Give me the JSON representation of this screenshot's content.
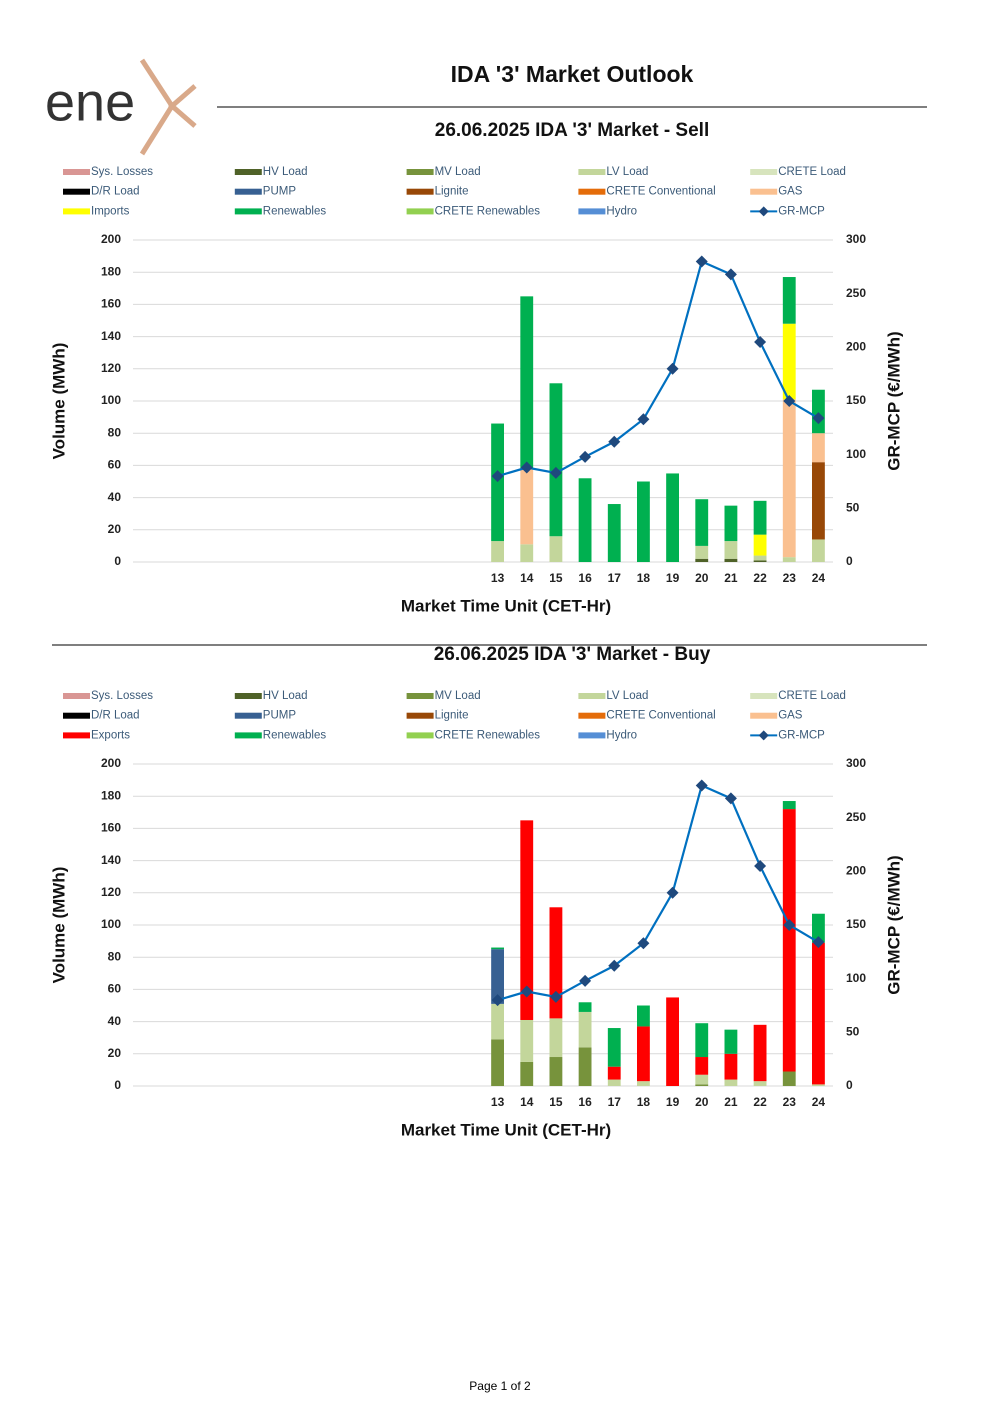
{
  "logo": "ene",
  "title": "IDA '3' Market Outlook",
  "footer": "Page 1 of 2",
  "chart_data": [
    {
      "type": "stacked-bar-line",
      "title": "26.06.2025  IDA '3' Market - Sell",
      "x_label": "Market Time Unit (CET-Hr)",
      "y_label": "Volume (MWh)",
      "y2_label": "GR-MCP (€/MWh)",
      "categories": [
        null,
        null,
        null,
        null,
        null,
        null,
        null,
        null,
        null,
        null,
        null,
        null,
        "13",
        "14",
        "15",
        "16",
        "17",
        "18",
        "19",
        "20",
        "21",
        "22",
        "23",
        "24"
      ],
      "ylim": [
        0,
        200
      ],
      "yticks": [
        0,
        20,
        40,
        60,
        80,
        100,
        120,
        140,
        160,
        180,
        200
      ],
      "y2lim": [
        0,
        300
      ],
      "y2ticks": [
        0,
        50,
        100,
        150,
        200,
        250,
        300
      ],
      "grid": true,
      "series": [
        {
          "name": "Sys. Losses",
          "color": "#d99694",
          "values": [
            null,
            null,
            null,
            null,
            null,
            null,
            null,
            null,
            null,
            null,
            null,
            null,
            null,
            null,
            null,
            null,
            null,
            null,
            null,
            null,
            null,
            null,
            null,
            null
          ]
        },
        {
          "name": "HV Load",
          "color": "#4f6228",
          "values": [
            null,
            null,
            null,
            null,
            null,
            null,
            null,
            null,
            null,
            null,
            null,
            null,
            null,
            null,
            null,
            null,
            null,
            null,
            null,
            2,
            2,
            1,
            null,
            null
          ]
        },
        {
          "name": "MV Load",
          "color": "#77933c",
          "values": [
            null,
            null,
            null,
            null,
            null,
            null,
            null,
            null,
            null,
            null,
            null,
            null,
            null,
            null,
            null,
            null,
            null,
            null,
            null,
            null,
            null,
            null,
            null,
            null
          ]
        },
        {
          "name": "LV Load",
          "color": "#c3d69b",
          "values": [
            null,
            null,
            null,
            null,
            null,
            null,
            null,
            null,
            null,
            null,
            null,
            null,
            13,
            11,
            16,
            null,
            null,
            null,
            null,
            8,
            11,
            3,
            3,
            14
          ]
        },
        {
          "name": "CRETE Load",
          "color": "#d7e4bd",
          "values": [
            null,
            null,
            null,
            null,
            null,
            null,
            null,
            null,
            null,
            null,
            null,
            null,
            null,
            null,
            null,
            null,
            null,
            null,
            null,
            null,
            null,
            null,
            null,
            null
          ]
        },
        {
          "name": "D/R Load",
          "color": "#000000",
          "values": [
            null,
            null,
            null,
            null,
            null,
            null,
            null,
            null,
            null,
            null,
            null,
            null,
            null,
            null,
            null,
            null,
            null,
            null,
            null,
            null,
            null,
            null,
            null,
            null
          ]
        },
        {
          "name": "PUMP",
          "color": "#376092",
          "values": [
            null,
            null,
            null,
            null,
            null,
            null,
            null,
            null,
            null,
            null,
            null,
            null,
            null,
            null,
            null,
            null,
            null,
            null,
            null,
            null,
            null,
            null,
            null,
            null
          ]
        },
        {
          "name": "Lignite",
          "color": "#984807",
          "values": [
            null,
            null,
            null,
            null,
            null,
            null,
            null,
            null,
            null,
            null,
            null,
            null,
            null,
            null,
            null,
            null,
            null,
            null,
            null,
            null,
            null,
            null,
            null,
            48
          ]
        },
        {
          "name": "CRETE Conventional",
          "color": "#e46c0a",
          "values": [
            null,
            null,
            null,
            null,
            null,
            null,
            null,
            null,
            null,
            null,
            null,
            null,
            null,
            null,
            null,
            null,
            null,
            null,
            null,
            null,
            null,
            null,
            null,
            null
          ]
        },
        {
          "name": "GAS",
          "color": "#fac090",
          "values": [
            null,
            null,
            null,
            null,
            null,
            null,
            null,
            null,
            null,
            null,
            null,
            null,
            null,
            47,
            null,
            null,
            null,
            null,
            null,
            null,
            null,
            null,
            98,
            18
          ]
        },
        {
          "name": "Imports",
          "color": "#ffff00",
          "values": [
            null,
            null,
            null,
            null,
            null,
            null,
            null,
            null,
            null,
            null,
            null,
            null,
            null,
            null,
            null,
            null,
            null,
            null,
            null,
            null,
            null,
            13,
            47,
            null
          ]
        },
        {
          "name": "Renewables",
          "color": "#00b050",
          "values": [
            null,
            null,
            null,
            null,
            null,
            null,
            null,
            null,
            null,
            null,
            null,
            null,
            73,
            107,
            95,
            52,
            36,
            50,
            55,
            29,
            22,
            21,
            29,
            27
          ]
        },
        {
          "name": "CRETE Renewables",
          "color": "#92d050",
          "values": [
            null,
            null,
            null,
            null,
            null,
            null,
            null,
            null,
            null,
            null,
            null,
            null,
            null,
            null,
            null,
            null,
            null,
            null,
            null,
            null,
            null,
            null,
            null,
            null
          ]
        },
        {
          "name": "Hydro",
          "color": "#558ed5",
          "values": [
            null,
            null,
            null,
            null,
            null,
            null,
            null,
            null,
            null,
            null,
            null,
            null,
            null,
            null,
            null,
            null,
            null,
            null,
            null,
            null,
            null,
            null,
            null,
            null
          ]
        },
        {
          "name": "GR-MCP",
          "color": "#0070c0",
          "marker_color": "#1f497d",
          "axis": "y2",
          "values": [
            null,
            null,
            null,
            null,
            null,
            null,
            null,
            null,
            null,
            null,
            null,
            null,
            80,
            88,
            83,
            98,
            112,
            133,
            180,
            280,
            268,
            205,
            150,
            134
          ]
        }
      ]
    },
    {
      "type": "stacked-bar-line",
      "title": "26.06.2025  IDA '3' Market - Buy",
      "x_label": "Market Time Unit (CET-Hr)",
      "y_label": "Volume (MWh)",
      "y2_label": "GR-MCP (€/MWh)",
      "categories": [
        null,
        null,
        null,
        null,
        null,
        null,
        null,
        null,
        null,
        null,
        null,
        null,
        "13",
        "14",
        "15",
        "16",
        "17",
        "18",
        "19",
        "20",
        "21",
        "22",
        "23",
        "24"
      ],
      "ylim": [
        0,
        200
      ],
      "yticks": [
        0,
        20,
        40,
        60,
        80,
        100,
        120,
        140,
        160,
        180,
        200
      ],
      "y2lim": [
        0,
        300
      ],
      "y2ticks": [
        0,
        50,
        100,
        150,
        200,
        250,
        300
      ],
      "grid": true,
      "series": [
        {
          "name": "Sys. Losses",
          "color": "#d99694",
          "values": [
            null,
            null,
            null,
            null,
            null,
            null,
            null,
            null,
            null,
            null,
            null,
            null,
            null,
            null,
            null,
            null,
            null,
            null,
            null,
            null,
            null,
            null,
            null,
            null
          ]
        },
        {
          "name": "HV Load",
          "color": "#4f6228",
          "values": [
            null,
            null,
            null,
            null,
            null,
            null,
            null,
            null,
            null,
            null,
            null,
            null,
            null,
            null,
            null,
            null,
            null,
            null,
            null,
            null,
            null,
            null,
            null,
            null
          ]
        },
        {
          "name": "MV Load",
          "color": "#77933c",
          "values": [
            null,
            null,
            null,
            null,
            null,
            null,
            null,
            null,
            null,
            null,
            null,
            null,
            29,
            15,
            18,
            24,
            null,
            null,
            null,
            1,
            null,
            null,
            9,
            null
          ]
        },
        {
          "name": "LV Load",
          "color": "#c3d69b",
          "values": [
            null,
            null,
            null,
            null,
            null,
            null,
            null,
            null,
            null,
            null,
            null,
            null,
            22,
            26,
            24,
            22,
            4,
            3,
            null,
            6,
            4,
            3,
            null,
            1
          ]
        },
        {
          "name": "CRETE Load",
          "color": "#d7e4bd",
          "values": [
            null,
            null,
            null,
            null,
            null,
            null,
            null,
            null,
            null,
            null,
            null,
            null,
            null,
            null,
            null,
            null,
            null,
            null,
            null,
            null,
            null,
            null,
            null,
            null
          ]
        },
        {
          "name": "D/R Load",
          "color": "#000000",
          "values": [
            null,
            null,
            null,
            null,
            null,
            null,
            null,
            null,
            null,
            null,
            null,
            null,
            null,
            null,
            null,
            null,
            null,
            null,
            null,
            null,
            null,
            null,
            null,
            null
          ]
        },
        {
          "name": "PUMP",
          "color": "#376092",
          "values": [
            null,
            null,
            null,
            null,
            null,
            null,
            null,
            null,
            null,
            null,
            null,
            null,
            34,
            null,
            null,
            null,
            null,
            null,
            null,
            null,
            null,
            null,
            null,
            null
          ]
        },
        {
          "name": "Lignite",
          "color": "#984807",
          "values": [
            null,
            null,
            null,
            null,
            null,
            null,
            null,
            null,
            null,
            null,
            null,
            null,
            null,
            null,
            null,
            null,
            null,
            null,
            null,
            null,
            null,
            null,
            null,
            null
          ]
        },
        {
          "name": "CRETE Conventional",
          "color": "#e46c0a",
          "values": [
            null,
            null,
            null,
            null,
            null,
            null,
            null,
            null,
            null,
            null,
            null,
            null,
            null,
            null,
            null,
            null,
            null,
            null,
            null,
            null,
            null,
            null,
            null,
            null
          ]
        },
        {
          "name": "GAS",
          "color": "#fac090",
          "values": [
            null,
            null,
            null,
            null,
            null,
            null,
            null,
            null,
            null,
            null,
            null,
            null,
            null,
            null,
            null,
            null,
            null,
            null,
            null,
            null,
            null,
            null,
            null,
            null
          ]
        },
        {
          "name": "Exports",
          "color": "#ff0000",
          "values": [
            null,
            null,
            null,
            null,
            null,
            null,
            null,
            null,
            null,
            null,
            null,
            null,
            null,
            124,
            69,
            null,
            8,
            34,
            55,
            11,
            16,
            35,
            163,
            88
          ]
        },
        {
          "name": "Renewables",
          "color": "#00b050",
          "values": [
            null,
            null,
            null,
            null,
            null,
            null,
            null,
            null,
            null,
            null,
            null,
            null,
            1,
            null,
            null,
            6,
            24,
            13,
            null,
            21,
            15,
            null,
            5,
            18
          ]
        },
        {
          "name": "CRETE Renewables",
          "color": "#92d050",
          "values": [
            null,
            null,
            null,
            null,
            null,
            null,
            null,
            null,
            null,
            null,
            null,
            null,
            null,
            null,
            null,
            null,
            null,
            null,
            null,
            null,
            null,
            null,
            null,
            null
          ]
        },
        {
          "name": "Hydro",
          "color": "#558ed5",
          "values": [
            null,
            null,
            null,
            null,
            null,
            null,
            null,
            null,
            null,
            null,
            null,
            null,
            null,
            null,
            null,
            null,
            null,
            null,
            null,
            null,
            null,
            null,
            null,
            null
          ]
        },
        {
          "name": "GR-MCP",
          "color": "#0070c0",
          "marker_color": "#1f497d",
          "axis": "y2",
          "values": [
            null,
            null,
            null,
            null,
            null,
            null,
            null,
            null,
            null,
            null,
            null,
            null,
            80,
            88,
            83,
            98,
            112,
            133,
            180,
            280,
            268,
            205,
            150,
            134
          ]
        }
      ]
    }
  ]
}
